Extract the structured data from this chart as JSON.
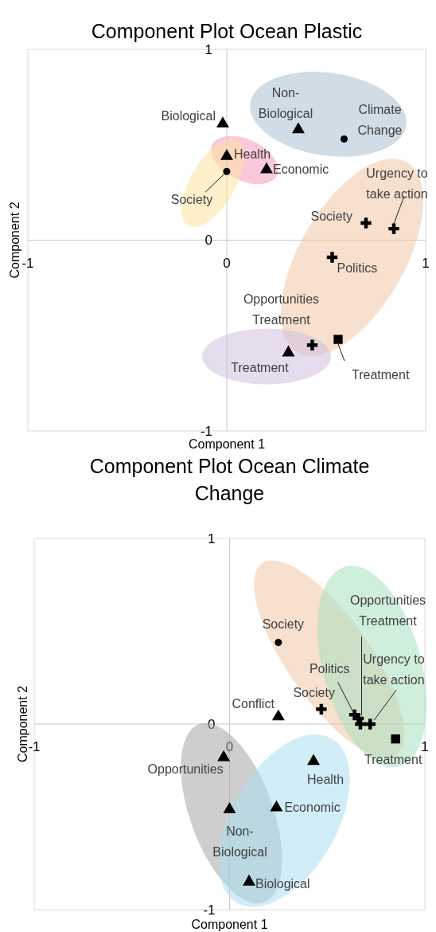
{
  "chart_data": [
    {
      "type": "scatter",
      "title": "Component Plot Ocean Plastic",
      "xlabel": "Component 1",
      "ylabel": "Component 2",
      "xlim": [
        -1,
        1
      ],
      "ylim": [
        -1,
        1
      ],
      "xticks": [
        -1,
        0,
        1
      ],
      "yticks": [
        -1,
        0,
        1
      ],
      "series": [
        {
          "marker": "triangle",
          "color": "#000000",
          "x": [
            -0.02,
            0.36,
            0.0,
            0.2,
            0.31
          ],
          "values": [
            0.61,
            0.58,
            0.44,
            0.37,
            -0.59
          ]
        },
        {
          "marker": "circle",
          "color": "#000000",
          "x": [
            0.59,
            0.0
          ],
          "values": [
            0.53,
            0.36
          ]
        },
        {
          "marker": "cross",
          "color": "#000000",
          "x": [
            0.7,
            0.84,
            0.53,
            0.43
          ],
          "values": [
            0.09,
            0.06,
            -0.09,
            -0.55
          ]
        },
        {
          "marker": "square",
          "color": "#000000",
          "x": [
            0.56
          ],
          "values": [
            -0.52
          ]
        }
      ],
      "annotations": [
        {
          "text": "Biological",
          "x": -0.02,
          "y": 0.61
        },
        {
          "text": "Non-Biological",
          "x": 0.36,
          "y": 0.58
        },
        {
          "text": "Climate Change",
          "x": 0.59,
          "y": 0.53
        },
        {
          "text": "Health",
          "x": 0.0,
          "y": 0.44
        },
        {
          "text": "Society",
          "x": 0.0,
          "y": 0.36
        },
        {
          "text": "Economic",
          "x": 0.2,
          "y": 0.37
        },
        {
          "text": "Society",
          "x": 0.7,
          "y": 0.09
        },
        {
          "text": "Urgency to take action",
          "x": 0.84,
          "y": 0.06
        },
        {
          "text": "Politics",
          "x": 0.53,
          "y": -0.09
        },
        {
          "text": "Opportunities Treatment",
          "x": 0.43,
          "y": -0.55
        },
        {
          "text": "Treatment",
          "x": 0.56,
          "y": -0.52
        },
        {
          "text": "Treatment",
          "x": 0.31,
          "y": -0.59
        }
      ]
    },
    {
      "type": "scatter",
      "title": "Component Plot Ocean Climate Change",
      "xlabel": "Component 1",
      "ylabel": "Component 2",
      "xlim": [
        -1,
        1
      ],
      "ylim": [
        -1,
        1
      ],
      "xticks": [
        -1,
        0,
        1
      ],
      "yticks": [
        -1,
        0,
        1
      ],
      "series": [
        {
          "marker": "triangle",
          "color": "#000000",
          "x": [
            0.25,
            0.43,
            -0.03,
            0.0,
            0.24,
            0.1
          ],
          "values": [
            0.04,
            -0.2,
            -0.18,
            -0.46,
            -0.45,
            -0.85
          ]
        },
        {
          "marker": "circle",
          "color": "#000000",
          "x": [
            0.25
          ],
          "values": [
            0.44
          ]
        },
        {
          "marker": "cross",
          "color": "#000000",
          "x": [
            0.47,
            0.64,
            0.66,
            0.67,
            0.72
          ],
          "values": [
            0.08,
            0.05,
            0.03,
            0.0,
            0.0
          ]
        },
        {
          "marker": "square",
          "color": "#000000",
          "x": [
            0.85
          ],
          "values": [
            -0.08
          ]
        }
      ],
      "annotations": [
        {
          "text": "Society",
          "x": 0.25,
          "y": 0.44
        },
        {
          "text": "Conflict",
          "x": 0.25,
          "y": 0.04
        },
        {
          "text": "Society",
          "x": 0.47,
          "y": 0.08
        },
        {
          "text": "Politics",
          "x": 0.64,
          "y": 0.05
        },
        {
          "text": "Opportunities Treatment",
          "x": 0.66,
          "y": 0.03
        },
        {
          "text": "Urgency to take action",
          "x": 0.72,
          "y": 0.0
        },
        {
          "text": "Treatment",
          "x": 0.85,
          "y": -0.08
        },
        {
          "text": "Health",
          "x": 0.43,
          "y": -0.2
        },
        {
          "text": "Opportunities",
          "x": -0.03,
          "y": -0.18
        },
        {
          "text": "Non-Biological",
          "x": 0.0,
          "y": -0.46
        },
        {
          "text": "Economic",
          "x": 0.24,
          "y": -0.45
        },
        {
          "text": "Biological",
          "x": 0.1,
          "y": -0.85
        }
      ]
    }
  ]
}
